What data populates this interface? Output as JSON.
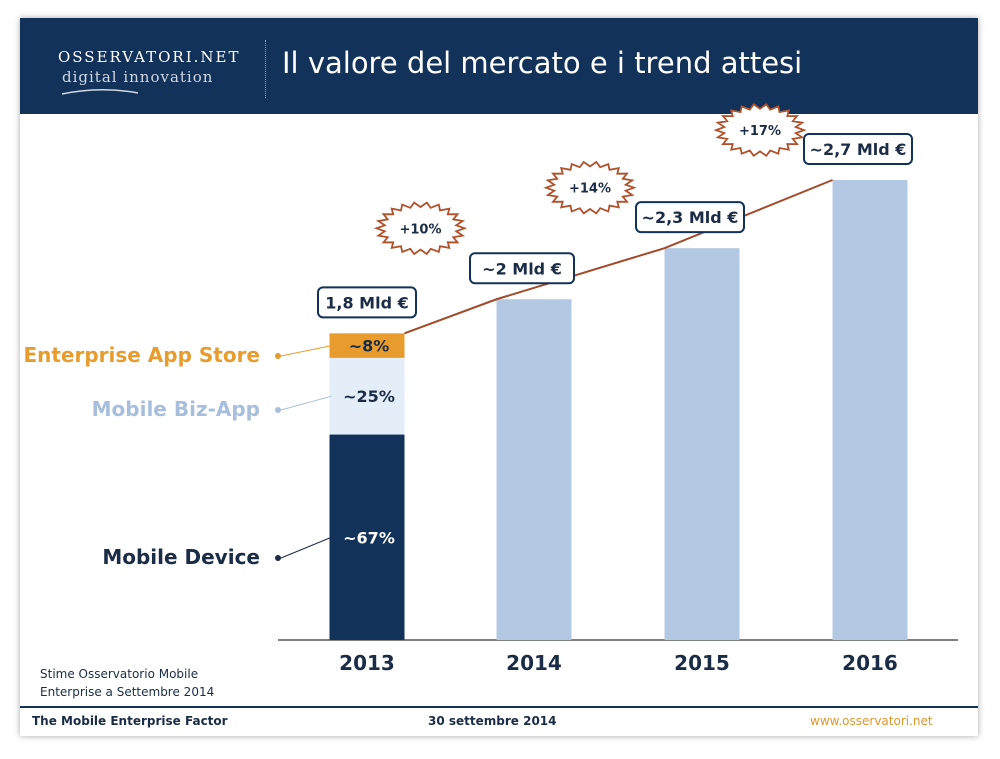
{
  "header": {
    "logo_top": "OSSERVATORI.NET",
    "logo_bottom": "digital innovation",
    "title": "Il valore del mercato e i trend attesi"
  },
  "chart_data": {
    "type": "bar",
    "title": "Il valore del mercato e i trend attesi",
    "unit": "Mld €",
    "categories": [
      "2013",
      "2014",
      "2015",
      "2016"
    ],
    "values": [
      1.8,
      2.0,
      2.3,
      2.7
    ],
    "value_labels": [
      "1,8 Mld €",
      "~2 Mld €",
      "~2,3 Mld €",
      "~2,7 Mld €"
    ],
    "growth_labels": [
      "+10%",
      "+14%",
      "+17%"
    ],
    "ylim": [
      0,
      2.7
    ],
    "stacked_2013": [
      {
        "name": "Mobile Device",
        "share": 67,
        "label": "~67%",
        "color": "#12325a",
        "label_color": "#1a2c46"
      },
      {
        "name": "Mobile Biz-App",
        "share": 25,
        "label": "~25%",
        "color": "#e4eef8",
        "label_color": "#a7bfdc"
      },
      {
        "name": "Enterprise App Store",
        "share": 8,
        "label": "~8%",
        "color": "#e99c2e",
        "label_color": "#e99c2e"
      }
    ],
    "bar_color": "#b3c9e3",
    "trend_line_color": "#a24a2a",
    "source_note": [
      "Stime Osservatorio Mobile",
      "Enterprise a Settembre 2014"
    ]
  },
  "footer": {
    "left": "The Mobile Enterprise Factor",
    "center": "30 settembre 2014",
    "right": "www.osservatori.net"
  }
}
